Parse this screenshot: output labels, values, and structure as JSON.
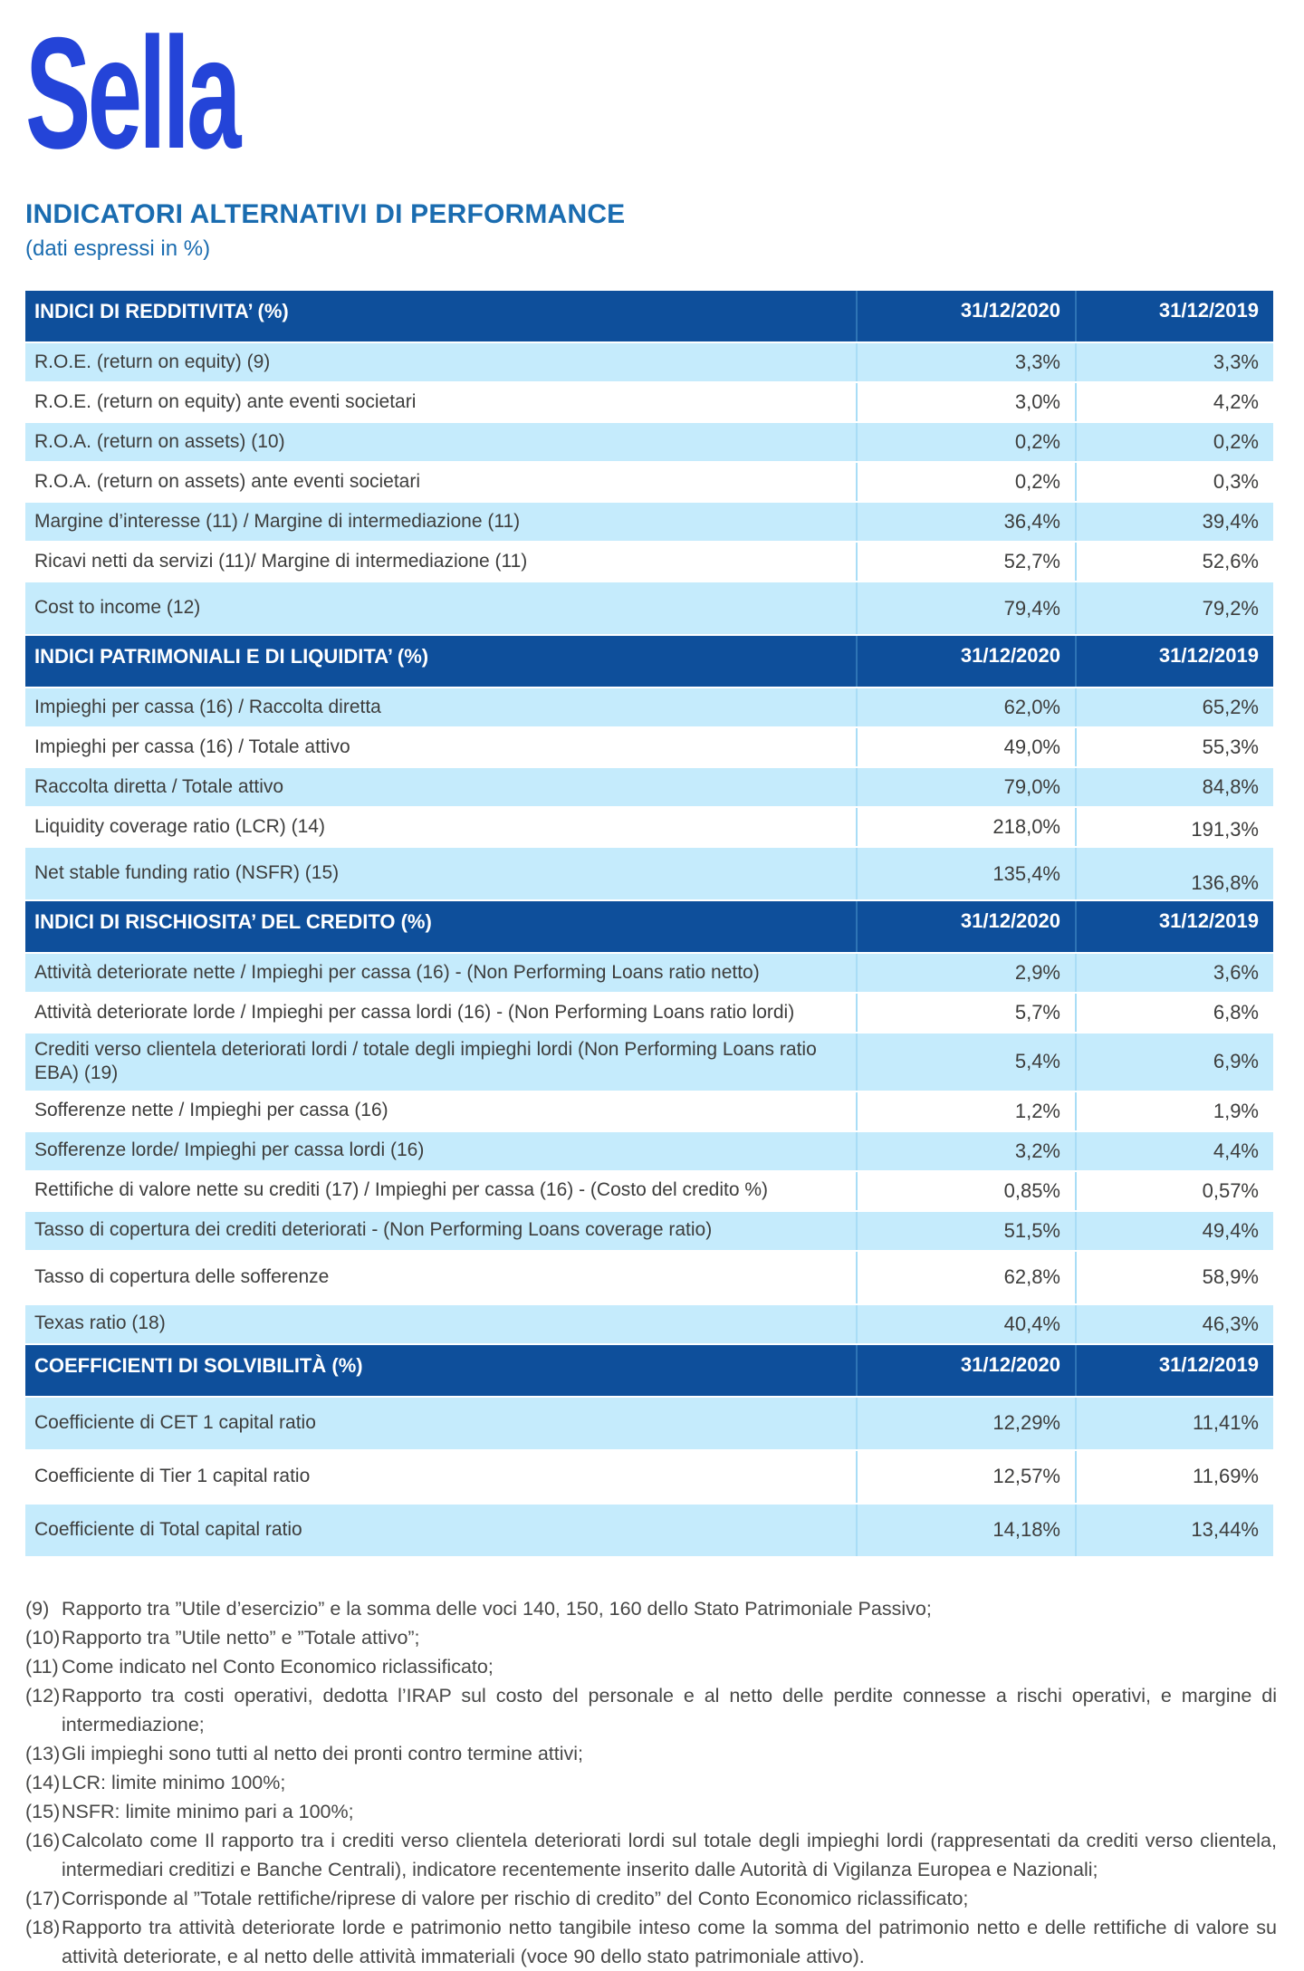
{
  "logo": {
    "text": "Sella"
  },
  "page": {
    "title": "INDICATORI ALTERNATIVI DI PERFORMANCE",
    "subtitle": "(dati espressi in %)"
  },
  "colors": {
    "logo_blue": "#2444d8",
    "title_blue": "#1a6cb0",
    "header_bg": "#0e4f9b",
    "row_light": "#c5ebfc",
    "text_dark": "#3d3d3c"
  },
  "table": {
    "col_2020": "31/12/2020",
    "col_2019": "31/12/2019",
    "sections": [
      {
        "title": "INDICI DI REDDITIVITA’ (%)",
        "rows": [
          {
            "label": "R.O.E. (return on equity) (9)",
            "v2020": "3,3%",
            "v2019": "3,3%"
          },
          {
            "label": "R.O.E. (return on equity) ante eventi societari",
            "v2020": "3,0%",
            "v2019": "4,2%"
          },
          {
            "label": "R.O.A. (return on assets) (10)",
            "v2020": "0,2%",
            "v2019": "0,2%"
          },
          {
            "label": "R.O.A. (return on assets) ante eventi societari",
            "v2020": "0,2%",
            "v2019": "0,3%"
          },
          {
            "label": "Margine d’interesse (11) / Margine di intermediazione  (11)",
            "v2020": "36,4%",
            "v2019": "39,4%"
          },
          {
            "label": "Ricavi netti da servizi (11)/ Margine di intermediazione (11)",
            "v2020": "52,7%",
            "v2019": "52,6%"
          },
          {
            "label": "Cost to income (12)",
            "v2020": "79,4%",
            "v2019": "79,2%",
            "tall": true
          }
        ]
      },
      {
        "title": "INDICI PATRIMONIALI E DI LIQUIDITA’ (%)",
        "rows": [
          {
            "label": "Impieghi per cassa (16) / Raccolta diretta",
            "v2020": "62,0%",
            "v2019": "65,2%"
          },
          {
            "label": "Impieghi per cassa (16)  / Totale attivo",
            "v2020": "49,0%",
            "v2019": "55,3%"
          },
          {
            "label": "Raccolta diretta  / Totale attivo",
            "v2020": "79,0%",
            "v2019": "84,8%"
          },
          {
            "label": "Liquidity coverage ratio (LCR) (14)",
            "v2020": "218,0%",
            "v2019": "191,3%",
            "low2019": true
          },
          {
            "label": "Net stable funding ratio (NSFR) (15)",
            "v2020": "135,4%",
            "v2019": "136,8%",
            "tall": true,
            "low2019": true
          }
        ]
      },
      {
        "title": "INDICI DI RISCHIOSITA’ DEL CREDITO (%)",
        "rows": [
          {
            "label": "Attività deteriorate nette / Impieghi per cassa (16) - (Non Performing Loans ratio netto)",
            "v2020": "2,9%",
            "v2019": "3,6%"
          },
          {
            "label": "Attività deteriorate lorde / Impieghi per cassa lordi (16) - (Non Performing Loans ratio lordi)",
            "v2020": "5,7%",
            "v2019": "6,8%"
          },
          {
            "label": "Crediti verso clientela deteriorati lordi / totale degli impieghi lordi (Non Performing Loans ratio EBA) (19)",
            "v2020": "5,4%",
            "v2019": "6,9%"
          },
          {
            "label": "Sofferenze nette / Impieghi per cassa (16)",
            "v2020": "1,2%",
            "v2019": "1,9%"
          },
          {
            "label": "Sofferenze lorde/ Impieghi per cassa lordi (16)",
            "v2020": "3,2%",
            "v2019": "4,4%"
          },
          {
            "label": "Rettifiche di valore nette su crediti (17) / Impieghi per cassa (16) - (Costo del credito %)",
            "v2020": "0,85%",
            "v2019": "0,57%"
          },
          {
            "label": "Tasso di copertura dei crediti deteriorati - (Non Performing Loans coverage ratio)",
            "v2020": "51,5%",
            "v2019": "49,4%"
          },
          {
            "label": "Tasso di copertura delle sofferenze",
            "v2020": "62,8%",
            "v2019": "58,9%",
            "tall": true
          },
          {
            "label": "Texas ratio (18)",
            "v2020": "40,4%",
            "v2019": "46,3%"
          }
        ]
      },
      {
        "title": "COEFFICIENTI DI SOLVIBILITÀ (%)",
        "rows": [
          {
            "label": "Coefficiente di CET 1 capital ratio",
            "v2020": "12,29%",
            "v2019": "11,41%",
            "tall": true
          },
          {
            "label": "Coefficiente di Tier 1 capital ratio",
            "v2020": "12,57%",
            "v2019": "11,69%",
            "tall": true
          },
          {
            "label": "Coefficiente di Total capital ratio",
            "v2020": "14,18%",
            "v2019": "13,44%",
            "tall": true
          }
        ]
      }
    ]
  },
  "footnotes": [
    {
      "num": "(9)",
      "text": "Rapporto tra ”Utile d’esercizio” e la somma delle voci 140, 150, 160 dello Stato Patrimoniale Passivo;"
    },
    {
      "num": "(10)",
      "text": "Rapporto tra ”Utile netto” e ”Totale attivo”;"
    },
    {
      "num": "(11)",
      "text": "Come indicato nel Conto Economico riclassificato;"
    },
    {
      "num": "(12)",
      "text": "Rapporto tra costi operativi, dedotta l’IRAP sul costo del personale e al netto delle perdite connesse a rischi operativi, e margine di intermediazione;"
    },
    {
      "num": "(13)",
      "text": "Gli impieghi sono tutti al netto dei pronti contro termine attivi;"
    },
    {
      "num": "(14)",
      "text": "LCR: limite minimo 100%;"
    },
    {
      "num": "(15)",
      "text": "NSFR: limite minimo pari a 100%;"
    },
    {
      "num": "(16)",
      "text": "Calcolato come Il rapporto tra i crediti verso clientela deteriorati lordi sul totale degli impieghi lordi (rappresentati da crediti verso clientela, intermediari creditizi e Banche Centrali), indicatore recentemente inserito dalle Autorità di Vigilanza Europea e Nazionali;"
    },
    {
      "num": "(17)",
      "text": "Corrisponde al ”Totale rettifiche/riprese di valore per rischio di credito” del Conto Economico riclassificato;"
    },
    {
      "num": "(18)",
      "text": "Rapporto tra attività deteriorate lorde e patrimonio netto tangibile inteso come la somma del patrimonio netto e delle rettifiche di valore su attività deteriorate, e al netto delle attività immateriali (voce 90 dello stato patrimoniale attivo)."
    }
  ]
}
